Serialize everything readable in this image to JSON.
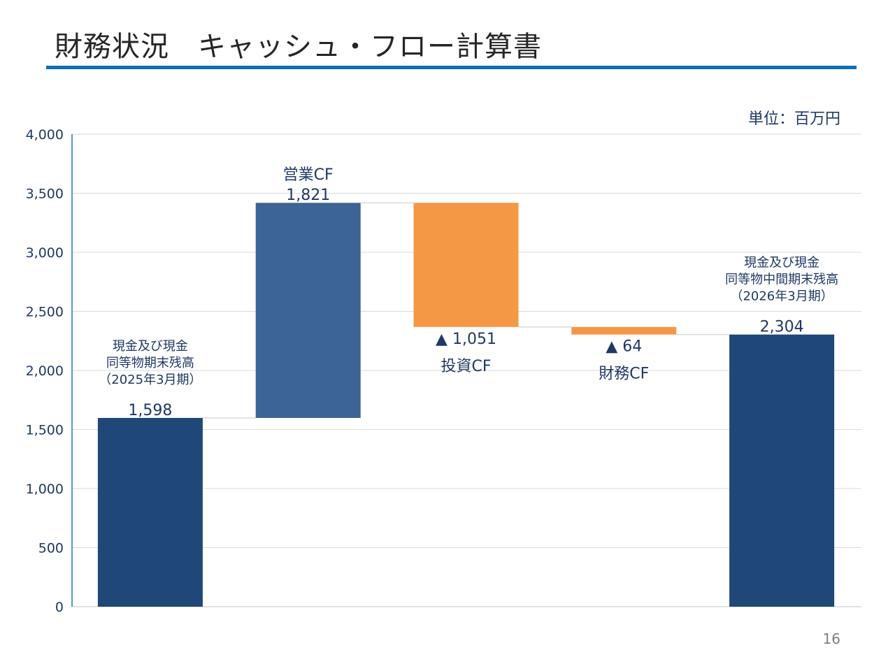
{
  "page": {
    "title": "財務状況　キャッシュ・フロー計算書",
    "unit_label": "単位：百万円",
    "page_number": "16"
  },
  "colors": {
    "balance": "#1f4778",
    "operating": "#3c6494",
    "negative": "#f59846",
    "axis": "#1f78b4",
    "grid": "#d9d9d9",
    "title_rule": "#0f6fb5"
  },
  "chart_data": {
    "type": "waterfall",
    "title": "",
    "xlabel": "",
    "ylabel": "",
    "ylim": [
      0,
      4000
    ],
    "yticks": [
      0,
      500,
      1000,
      1500,
      2000,
      2500,
      3000,
      3500,
      4000
    ],
    "ytick_labels": [
      "0",
      "500",
      "1,000",
      "1,500",
      "2,000",
      "2,500",
      "3,000",
      "3,500",
      "4,000"
    ],
    "grid": true,
    "bars": [
      {
        "label_lines": [
          "現金及び現金",
          "同等物期末残高",
          "（2025年3月期）"
        ],
        "kind": "total",
        "start": 0,
        "end": 1598,
        "value": 1598,
        "value_label": "1,598"
      },
      {
        "label_lines": [
          "営業CF"
        ],
        "kind": "increase",
        "start": 1598,
        "end": 3419,
        "value": 1821,
        "value_label": "1,821"
      },
      {
        "label_lines": [
          "投資CF"
        ],
        "kind": "decrease",
        "start": 3419,
        "end": 2368,
        "value": -1051,
        "value_label": "▲ 1,051"
      },
      {
        "label_lines": [
          "財務CF"
        ],
        "kind": "decrease",
        "start": 2368,
        "end": 2304,
        "value": -64,
        "value_label": "▲ 64"
      },
      {
        "label_lines": [
          "現金及び現金",
          "同等物中間期末残高",
          "（2026年3月期）"
        ],
        "kind": "total",
        "start": 0,
        "end": 2304,
        "value": 2304,
        "value_label": "2,304"
      }
    ]
  }
}
